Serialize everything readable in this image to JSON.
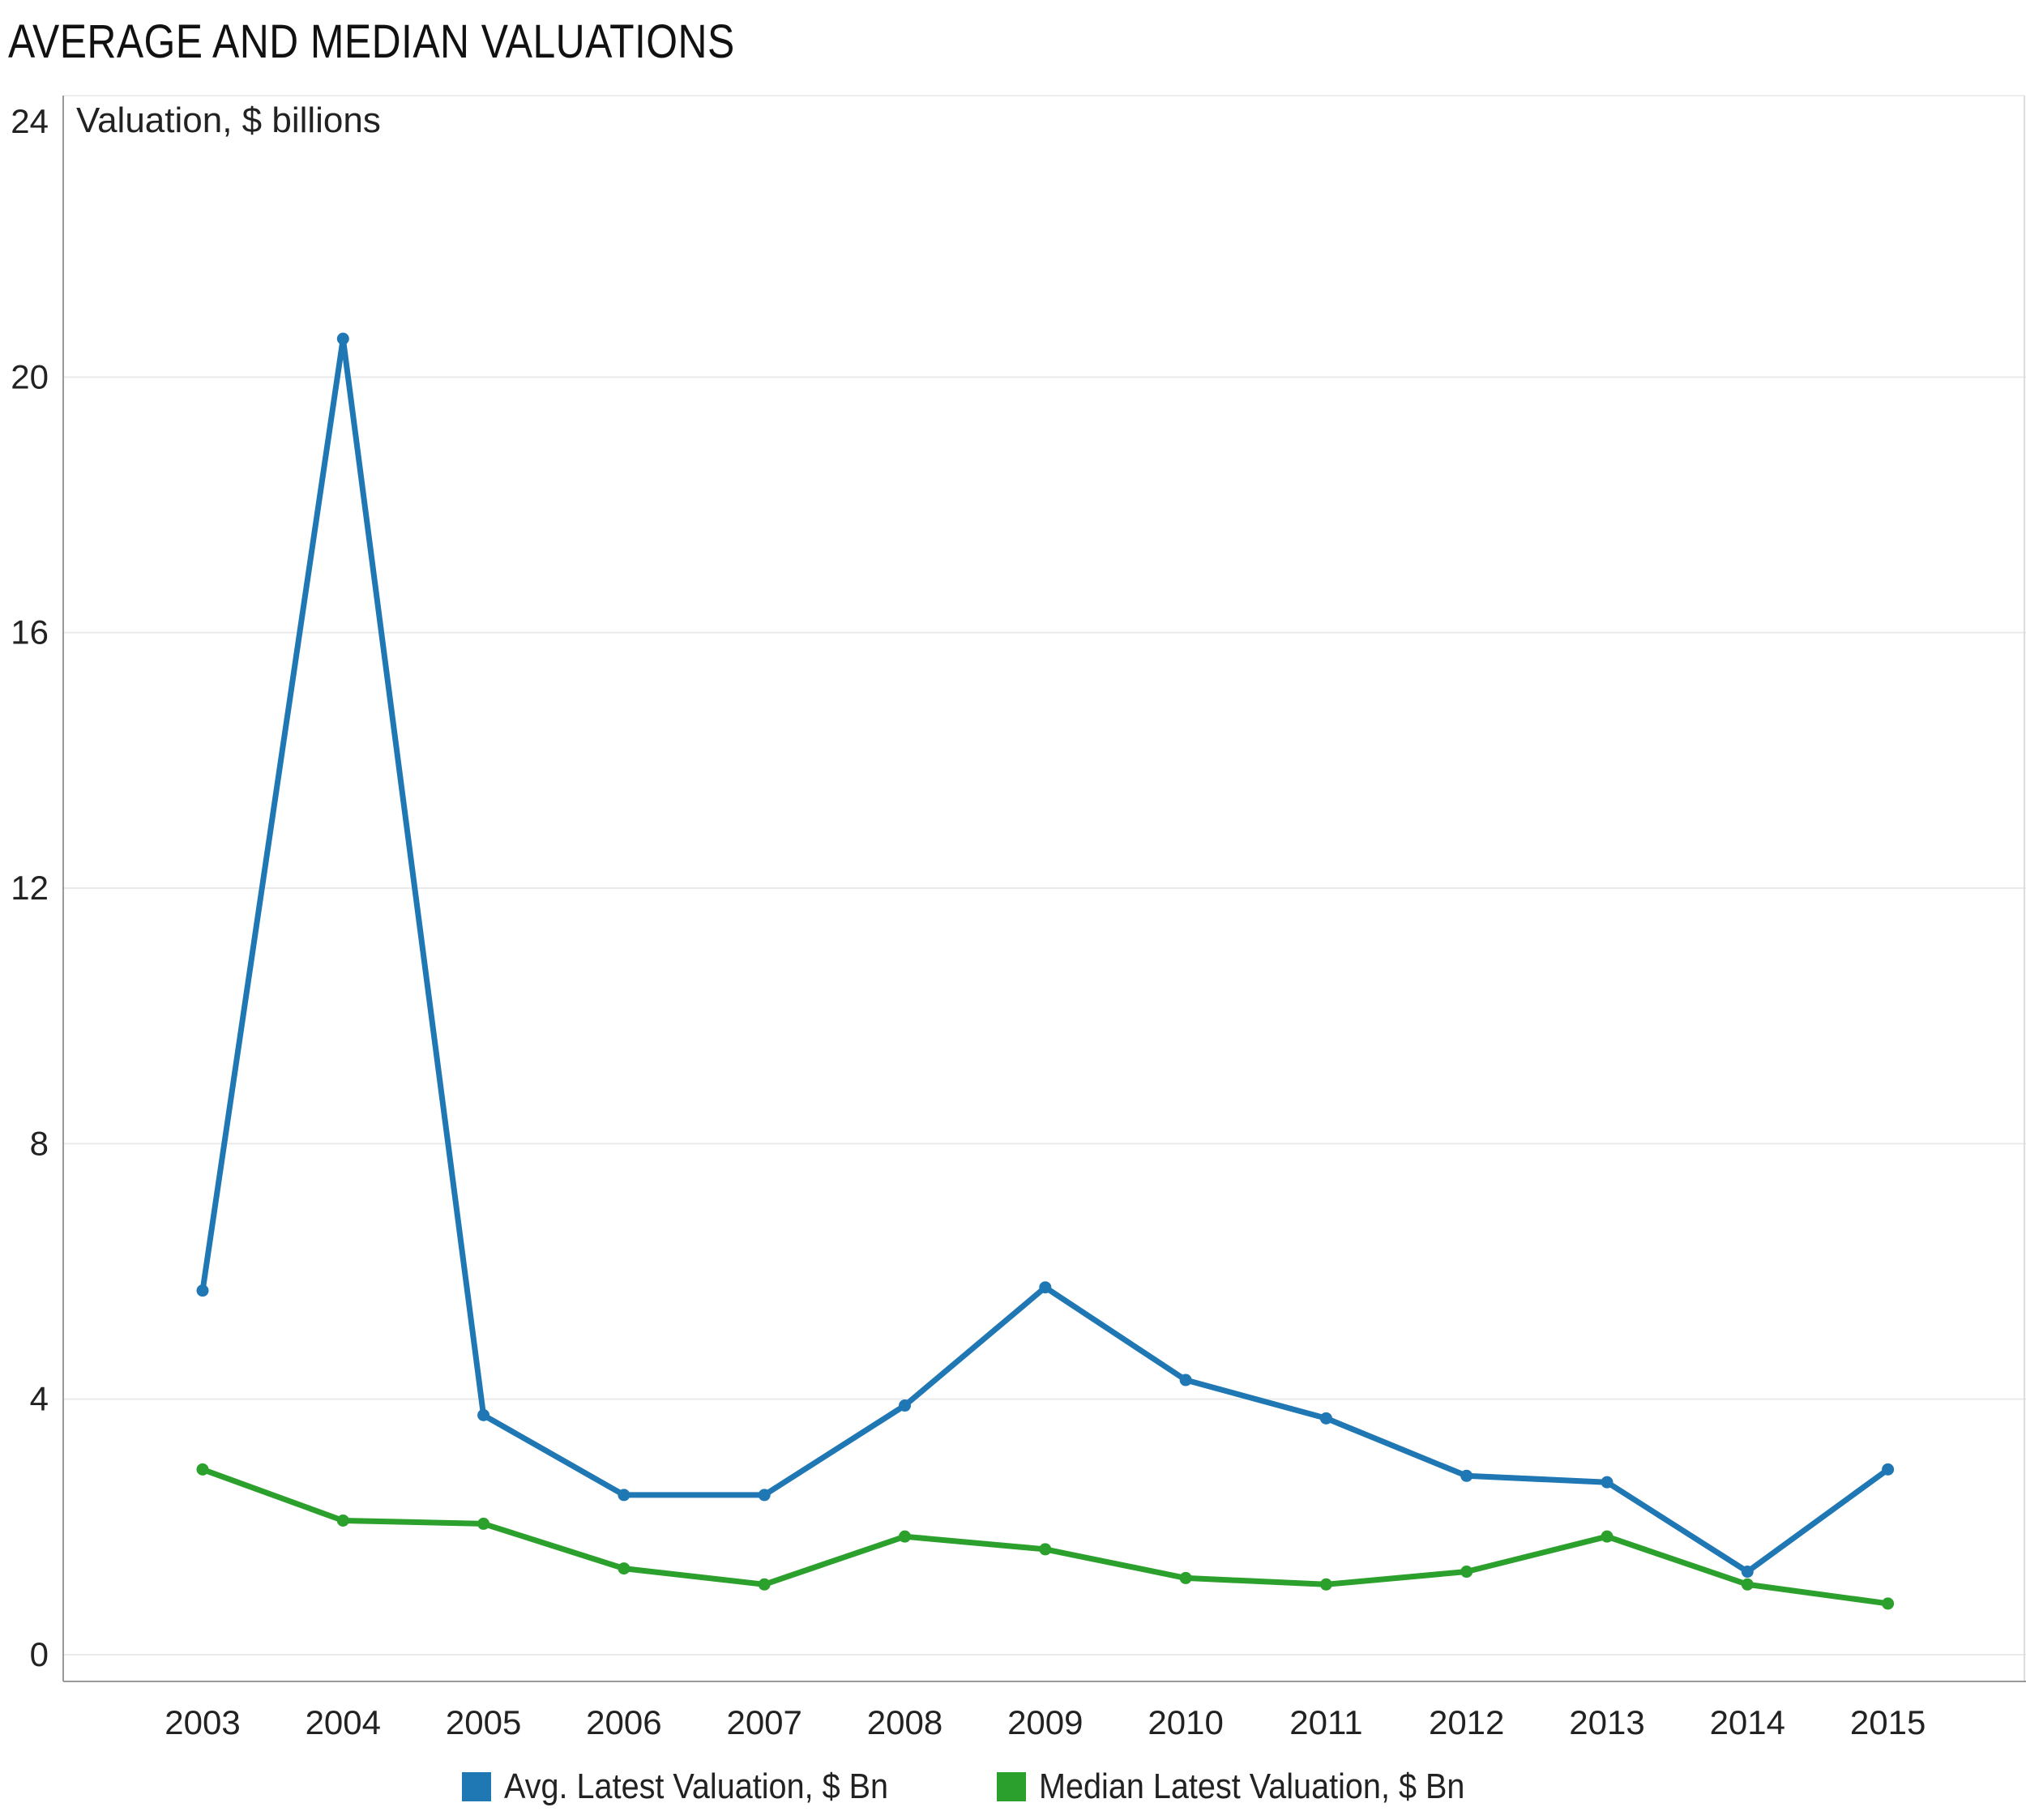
{
  "chart_data": {
    "type": "line",
    "title": "AVERAGE AND MEDIAN VALUATIONS",
    "ylabel": "Valuation, $ billions",
    "xlabel": "",
    "categories": [
      "2003",
      "2004",
      "2005",
      "2006",
      "2007",
      "2008",
      "2009",
      "2010",
      "2011",
      "2012",
      "2013",
      "2014",
      "2015"
    ],
    "series": [
      {
        "name": "Avg. Latest Valuation, $ Bn",
        "color": "#1f77b4",
        "values": [
          5.7,
          20.6,
          3.75,
          2.5,
          2.5,
          3.9,
          5.75,
          4.3,
          3.7,
          2.8,
          2.7,
          1.3,
          2.9
        ]
      },
      {
        "name": "Median Latest Valuation, $ Bn",
        "color": "#2ca02c",
        "values": [
          2.9,
          2.1,
          2.05,
          1.35,
          1.1,
          1.85,
          1.65,
          1.2,
          1.1,
          1.3,
          1.85,
          1.1,
          0.8
        ]
      }
    ],
    "ylim": [
      0,
      24
    ],
    "yticks": [
      0,
      4,
      8,
      12,
      16,
      20,
      24
    ],
    "grid": true,
    "legend_position": "bottom"
  }
}
